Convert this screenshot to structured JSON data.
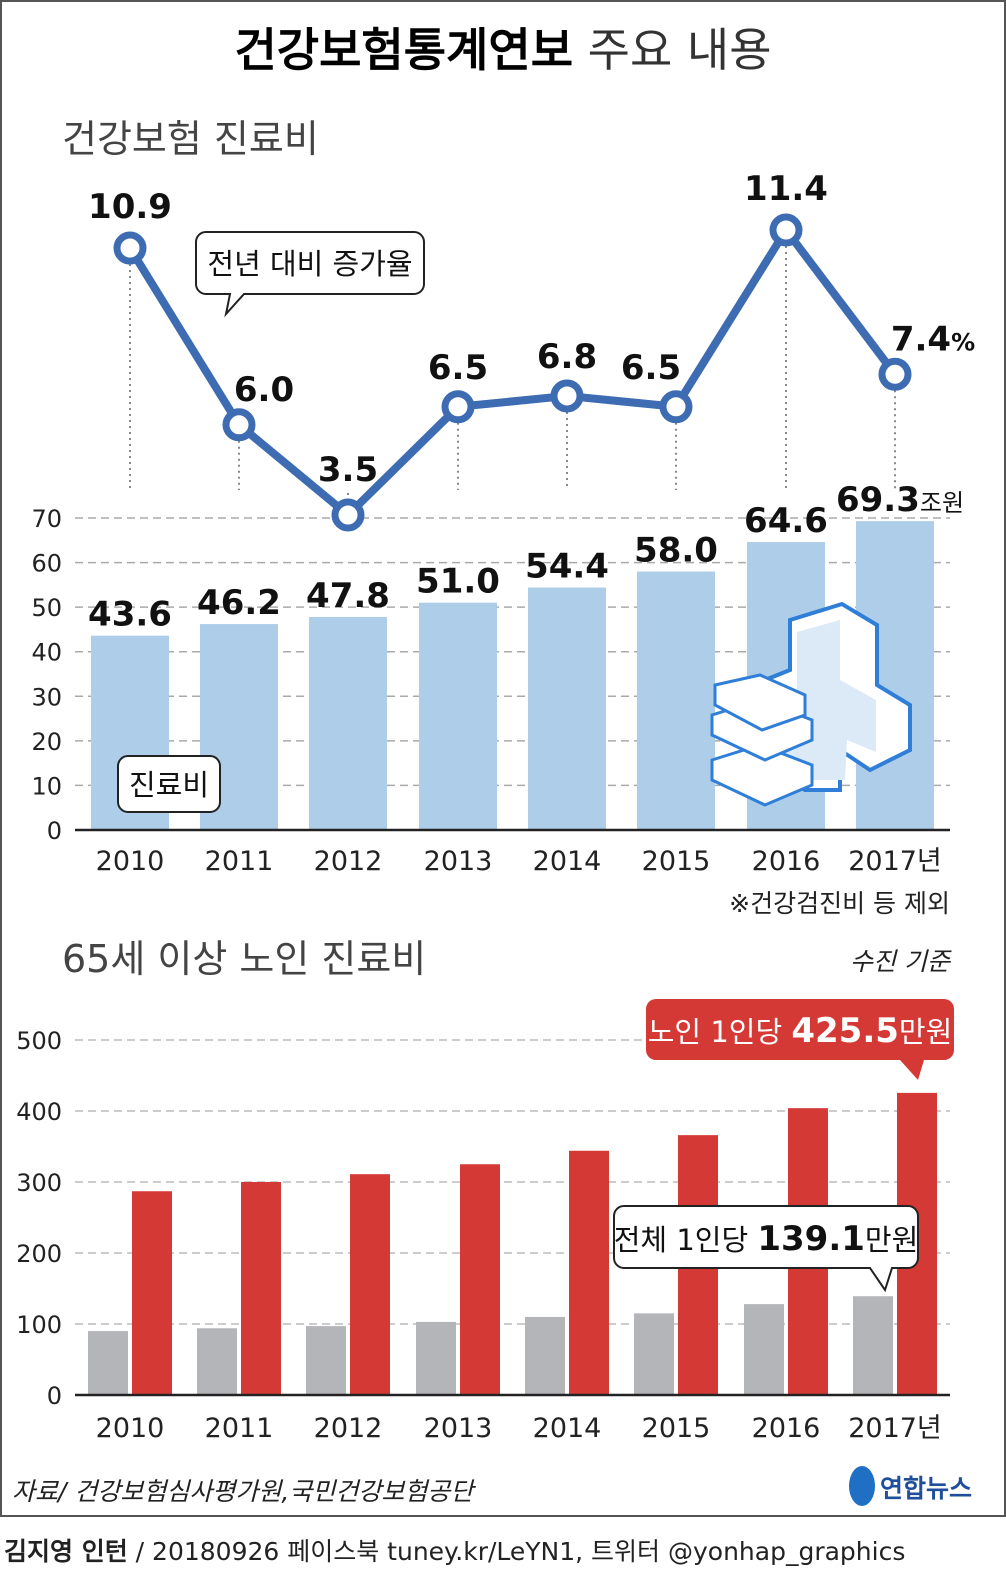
{
  "title_bold": "건강보험통계연보",
  "title_light": "주요 내용",
  "chart_data": [
    {
      "type": "bar+line",
      "title": "건강보험 진료비",
      "categories": [
        "2010",
        "2011",
        "2012",
        "2013",
        "2014",
        "2015",
        "2016",
        "2017"
      ],
      "last_category_suffix": "년",
      "bar_series": {
        "name": "진료비",
        "values": [
          43.6,
          46.2,
          47.8,
          51.0,
          54.4,
          58.0,
          64.6,
          69.3
        ],
        "labels": [
          "43.6",
          "46.2",
          "47.8",
          "51.0",
          "54.4",
          "58.0",
          "64.6",
          "69.3"
        ],
        "unit": "조원",
        "color": "#aecde9"
      },
      "line_series": {
        "name": "전년 대비 증가율",
        "values": [
          10.9,
          6.0,
          3.5,
          6.5,
          6.8,
          6.5,
          11.4,
          7.4
        ],
        "labels": [
          "10.9",
          "6.0",
          "3.5",
          "6.5",
          "6.8",
          "6.5",
          "11.4",
          "7.4"
        ],
        "unit": "%",
        "color": "#3d6cb2"
      },
      "yticks": [
        "0",
        "10",
        "20",
        "30",
        "40",
        "50",
        "60",
        "70"
      ],
      "ylim": [
        0,
        70
      ],
      "note": "※건강검진비 등 제외"
    },
    {
      "type": "bar",
      "title": "65세 이상 노인 진료비",
      "basis": "수진 기준",
      "categories": [
        "2010",
        "2011",
        "2012",
        "2013",
        "2014",
        "2015",
        "2016",
        "2017"
      ],
      "last_category_suffix": "년",
      "series": [
        {
          "name": "전체 1인당",
          "values": [
            90,
            94,
            97,
            103,
            110,
            115,
            128,
            139.1
          ],
          "color": "#b4b5b9"
        },
        {
          "name": "노인 1인당",
          "values": [
            287,
            300,
            311,
            325,
            344,
            366,
            404,
            425.5
          ],
          "color": "#d43935"
        }
      ],
      "yticks": [
        "0",
        "100",
        "200",
        "300",
        "400",
        "500"
      ],
      "ylim": [
        0,
        500
      ],
      "callout_elderly": {
        "prefix": "노인 1인당 ",
        "value": "425.5",
        "unit": "만원"
      },
      "callout_total": {
        "prefix": "전체 1인당 ",
        "value": "139.1",
        "unit": "만원"
      }
    }
  ],
  "source": "자료/ 건강보험심사평가원,국민건강보험공단",
  "logo": "연합뉴스",
  "credit_name": "김지영 인턴",
  "credit_rest": " / 20180926  페이스북 tuney.kr/LeYN1, 트위터 @yonhap_graphics"
}
